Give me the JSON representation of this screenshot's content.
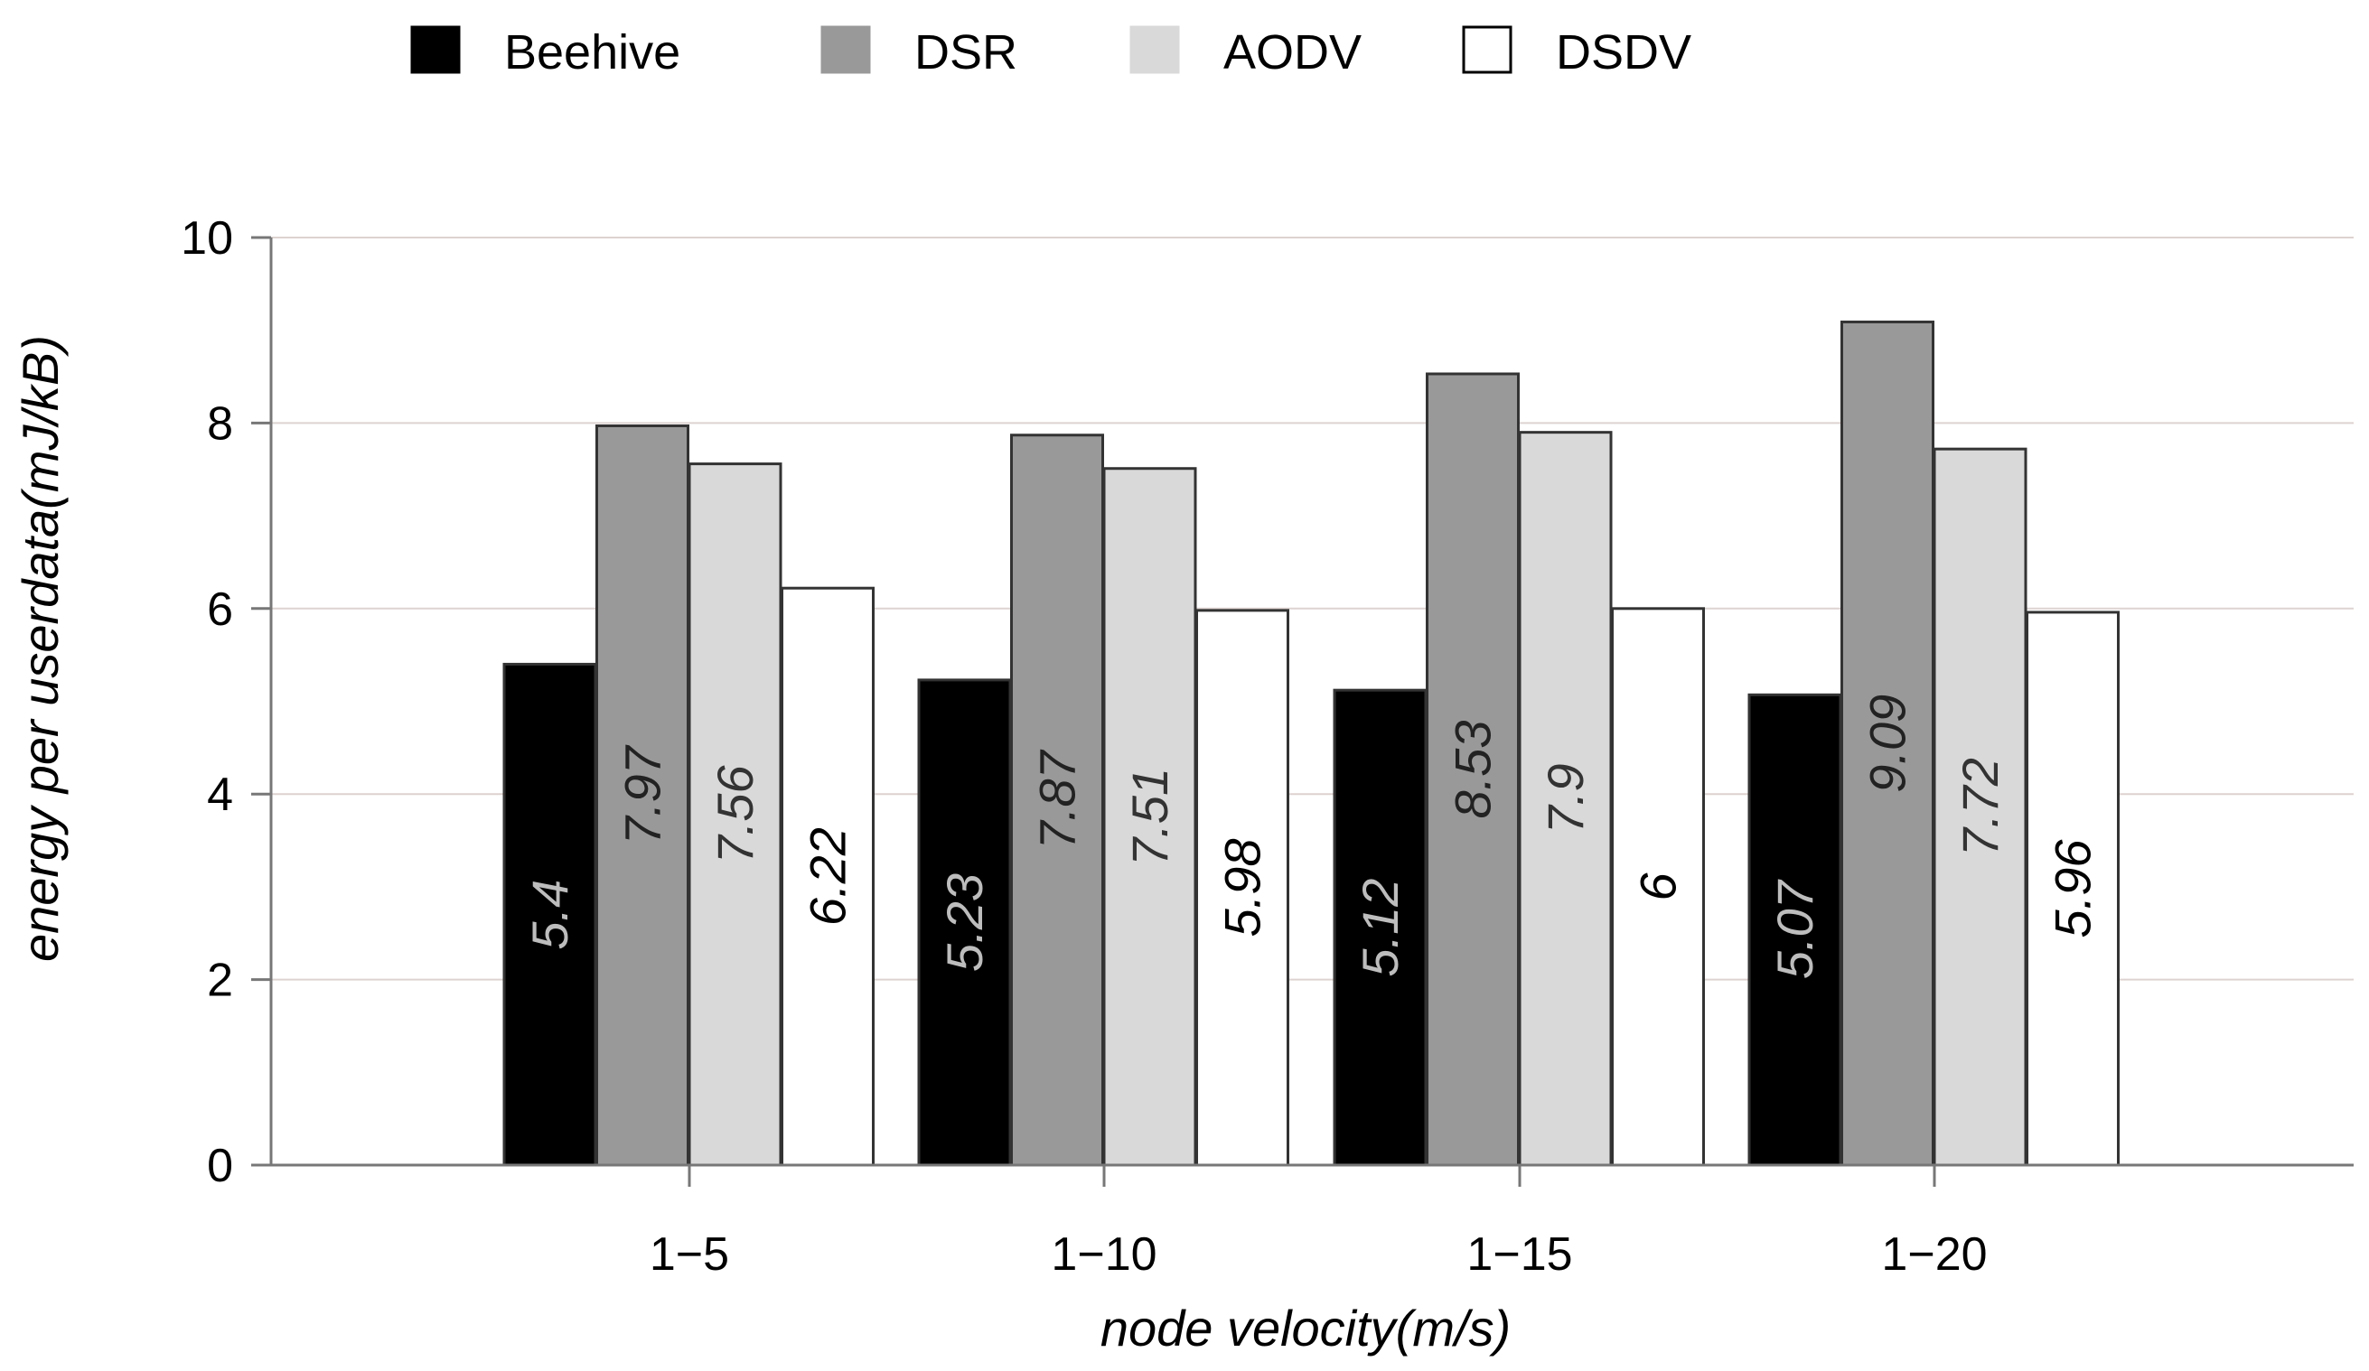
{
  "chart_data": {
    "type": "bar",
    "title": "",
    "xlabel": "node velocity(m/s)",
    "ylabel": "energy per userdata(mJ/kB)",
    "ylim": [
      0,
      10
    ],
    "yticks": [
      "0",
      "2",
      "4",
      "6",
      "8",
      "10"
    ],
    "grid": "horizontal",
    "legend_position": "top",
    "categories": [
      "1−5",
      "1−10",
      "1−15",
      "1−20"
    ],
    "series": [
      {
        "name": "Beehive",
        "color": "#000000",
        "label_color": "#bdbdbd",
        "values": [
          5.4,
          5.23,
          5.12,
          5.07
        ],
        "value_labels": [
          "5.4",
          "5.23",
          "5.12",
          "5.07"
        ]
      },
      {
        "name": "DSR",
        "color": "#999999",
        "label_color": "#222222",
        "values": [
          7.97,
          7.87,
          8.53,
          9.09
        ],
        "value_labels": [
          "7.97",
          "7.87",
          "8.53",
          "9.09"
        ]
      },
      {
        "name": "AODV",
        "color": "#d9d9d9",
        "label_color": "#333333",
        "values": [
          7.56,
          7.51,
          7.9,
          7.72
        ],
        "value_labels": [
          "7.56",
          "7.51",
          "7.9",
          "7.72"
        ]
      },
      {
        "name": "DSDV",
        "color": "#ffffff",
        "label_color": "#000000",
        "values": [
          6.22,
          5.98,
          6,
          5.96
        ],
        "value_labels": [
          "6.22",
          "5.98",
          "6",
          "5.96"
        ]
      }
    ]
  },
  "colors": {
    "grid": "#ddd3d0",
    "axis": "#777777",
    "bar_stroke": "#333333"
  }
}
